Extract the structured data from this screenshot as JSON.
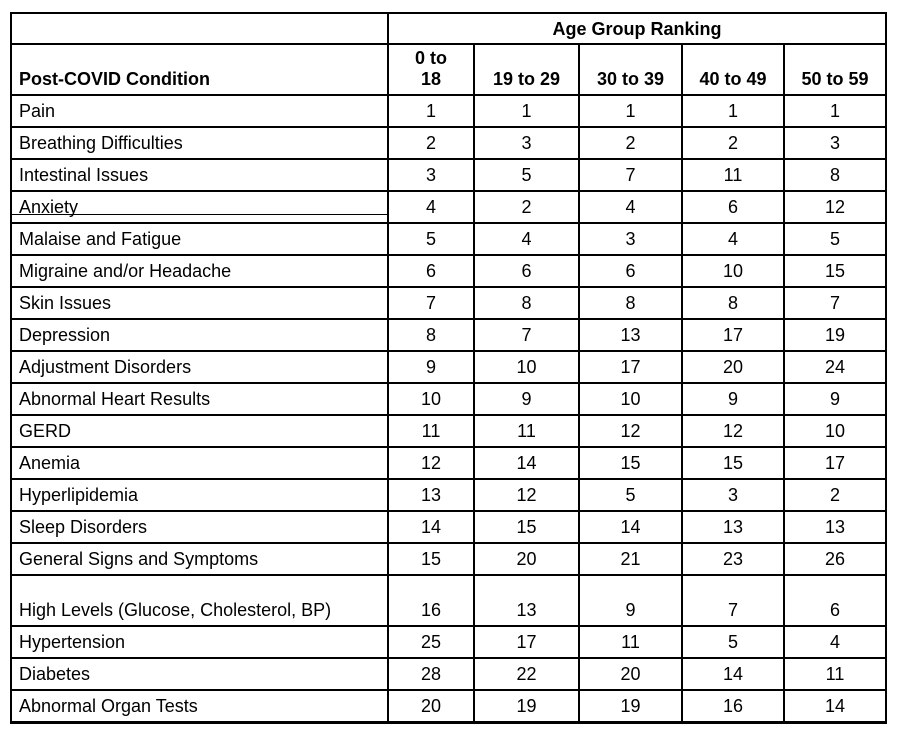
{
  "colors": {
    "border": "#000000",
    "text": "#000000",
    "background": "#ffffff"
  },
  "chart_data": {
    "type": "table",
    "title": "Age Group Ranking",
    "row_header_label": "Post-COVID Condition",
    "columns": [
      "0 to\n18",
      "19 to 29",
      "30 to 39",
      "40 to 49",
      "50 to 59"
    ],
    "rows": [
      {
        "condition": "Pain",
        "ranks": [
          1,
          1,
          1,
          1,
          1
        ]
      },
      {
        "condition": "Breathing Difficulties",
        "ranks": [
          2,
          3,
          2,
          2,
          3
        ]
      },
      {
        "condition": "Intestinal Issues",
        "ranks": [
          3,
          5,
          7,
          11,
          8
        ]
      },
      {
        "condition": "Anxiety",
        "ranks": [
          4,
          2,
          4,
          6,
          12
        ]
      },
      {
        "condition": "Malaise and Fatigue",
        "ranks": [
          5,
          4,
          3,
          4,
          5
        ]
      },
      {
        "condition": "Migraine and/or Headache",
        "ranks": [
          6,
          6,
          6,
          10,
          15
        ]
      },
      {
        "condition": "Skin Issues",
        "ranks": [
          7,
          8,
          8,
          8,
          7
        ]
      },
      {
        "condition": "Depression",
        "ranks": [
          8,
          7,
          13,
          17,
          19
        ]
      },
      {
        "condition": "Adjustment Disorders",
        "ranks": [
          9,
          10,
          17,
          20,
          24
        ]
      },
      {
        "condition": "Abnormal Heart Results",
        "ranks": [
          10,
          9,
          10,
          9,
          9
        ]
      },
      {
        "condition": "GERD",
        "ranks": [
          11,
          11,
          12,
          12,
          10
        ]
      },
      {
        "condition": "Anemia",
        "ranks": [
          12,
          14,
          15,
          15,
          17
        ]
      },
      {
        "condition": "Hyperlipidemia",
        "ranks": [
          13,
          12,
          5,
          3,
          2
        ]
      },
      {
        "condition": "Sleep Disorders",
        "ranks": [
          14,
          15,
          14,
          13,
          13
        ]
      },
      {
        "condition": "General Signs and Symptoms",
        "ranks": [
          15,
          20,
          21,
          23,
          26
        ]
      },
      {
        "condition": "High Levels (Glucose, Cholesterol, BP)",
        "ranks": [
          16,
          13,
          9,
          7,
          6
        ]
      },
      {
        "condition": "Hypertension",
        "ranks": [
          25,
          17,
          11,
          5,
          4
        ]
      },
      {
        "condition": "Diabetes",
        "ranks": [
          28,
          22,
          20,
          14,
          11
        ]
      },
      {
        "condition": "Abnormal Organ Tests",
        "ranks": [
          20,
          19,
          19,
          16,
          14
        ]
      }
    ]
  }
}
